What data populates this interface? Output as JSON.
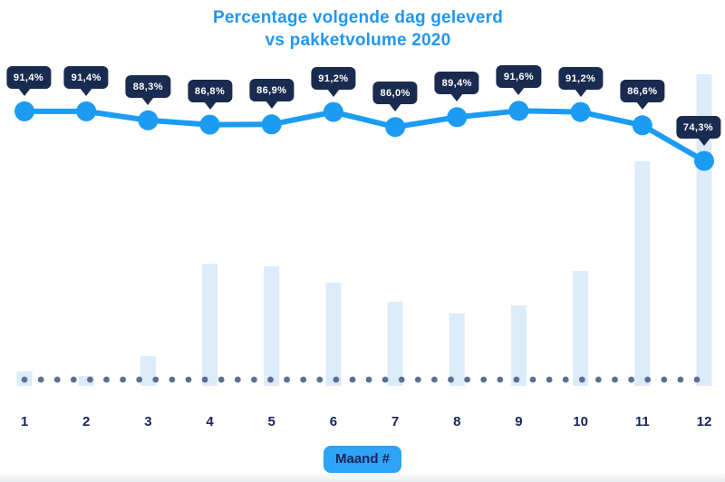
{
  "title": {
    "line1": "Percentage volgende dag geleverd",
    "line2": "vs pakketvolume 2020"
  },
  "x_axis": {
    "label": "Maand #",
    "ticks": [
      "1",
      "2",
      "3",
      "4",
      "5",
      "6",
      "7",
      "8",
      "9",
      "10",
      "11",
      "12"
    ]
  },
  "chart_data": {
    "type": "line+bar combo",
    "categories": [
      1,
      2,
      3,
      4,
      5,
      6,
      7,
      8,
      9,
      10,
      11,
      12
    ],
    "series": [
      {
        "name": "Percentage volgende dag geleverd",
        "type": "line",
        "unit": "%",
        "values": [
          91.4,
          91.4,
          88.3,
          86.8,
          86.9,
          91.2,
          86.0,
          89.4,
          91.6,
          91.2,
          86.6,
          74.3
        ],
        "labels": [
          "91,4%",
          "91,4%",
          "88,3%",
          "86,8%",
          "86,9%",
          "91,2%",
          "86,0%",
          "89,4%",
          "91,6%",
          "91,2%",
          "86,6%",
          "74,3%"
        ]
      },
      {
        "name": "Pakketvolume 2020",
        "type": "bar",
        "unit": "relative volume index (max month = 100, no axis shown)",
        "values": [
          4.7,
          3.2,
          9.6,
          39.2,
          38.4,
          33.1,
          27.0,
          23.3,
          25.9,
          36.9,
          72.1,
          100
        ]
      }
    ],
    "annotations": "each line point carries a dark tooltip-style label with its percentage; dotted baseline under bars; no y-axis shown",
    "legend": "none",
    "grid": "off"
  },
  "colors": {
    "title": "#2196f3",
    "line": "#1b9cf2",
    "point": "#1b9cf2",
    "badge_bg": "#1a2b50",
    "badge_text": "#ffffff",
    "bar": "#dcebf9",
    "dot": "#5c6e92",
    "axis_text": "#16265a",
    "xbadge_bg": "#2fa3f5",
    "xbadge_text": "#16265a"
  }
}
